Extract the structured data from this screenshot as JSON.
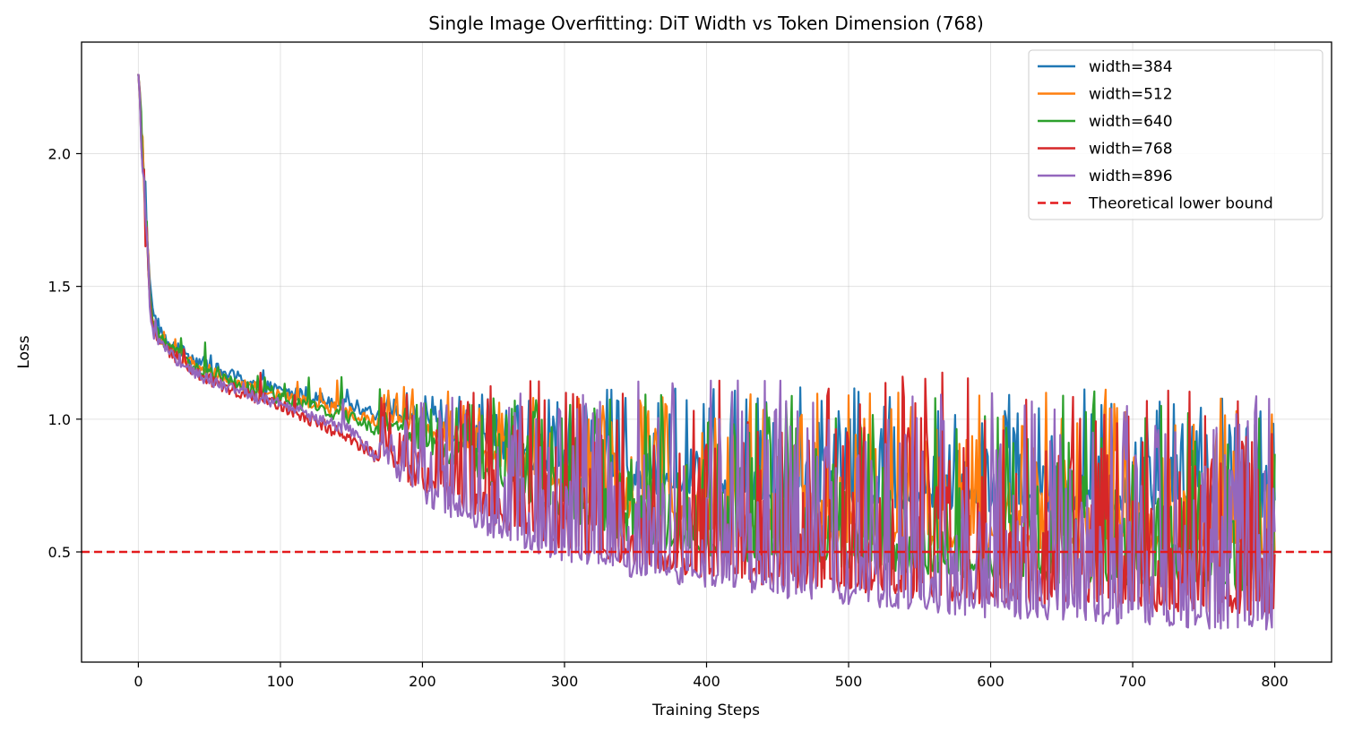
{
  "chart_data": {
    "type": "line",
    "title": "Single Image Overfitting: DiT Width vs Token Dimension (768)",
    "xlabel": "Training Steps",
    "ylabel": "Loss",
    "xlim": [
      -40,
      840
    ],
    "ylim": [
      0.085,
      2.42
    ],
    "xticks": [
      0,
      100,
      200,
      300,
      400,
      500,
      600,
      700,
      800
    ],
    "yticks": [
      0.5,
      1.0,
      1.5,
      2.0
    ],
    "xtick_labels": [
      "0",
      "100",
      "200",
      "300",
      "400",
      "500",
      "600",
      "700",
      "800"
    ],
    "ytick_labels": [
      "0.5",
      "1.0",
      "1.5",
      "2.0"
    ],
    "grid": true,
    "legend_position": "top-right",
    "reference_line": {
      "name": "Theoretical lower bound",
      "y": 0.5,
      "color": "#e31a1c",
      "style": "dashed"
    },
    "series": [
      {
        "name": "width=384",
        "color": "#1f77b4",
        "x": [
          0,
          5,
          10,
          20,
          40,
          60,
          100,
          150,
          200,
          250,
          300,
          350,
          400,
          450,
          500,
          550,
          600,
          650,
          700,
          750,
          800
        ],
        "base": [
          2.3,
          1.75,
          1.4,
          1.28,
          1.22,
          1.17,
          1.1,
          1.05,
          0.95,
          0.85,
          0.78,
          0.72,
          0.7,
          0.68,
          0.67,
          0.66,
          0.65,
          0.65,
          0.64,
          0.64,
          0.63
        ],
        "peak": [
          2.3,
          2.0,
          1.55,
          1.3,
          1.25,
          1.22,
          1.15,
          1.1,
          1.1,
          1.1,
          1.1,
          1.12,
          1.12,
          1.12,
          1.12,
          1.15,
          1.15,
          1.15,
          1.12,
          1.1,
          1.05
        ]
      },
      {
        "name": "width=512",
        "color": "#ff7f0e",
        "x": [
          0,
          5,
          10,
          20,
          40,
          60,
          100,
          150,
          200,
          250,
          300,
          350,
          400,
          450,
          500,
          550,
          600,
          650,
          700,
          750,
          800
        ],
        "base": [
          2.3,
          1.7,
          1.35,
          1.27,
          1.2,
          1.15,
          1.08,
          1.02,
          0.92,
          0.8,
          0.7,
          0.62,
          0.57,
          0.54,
          0.52,
          0.51,
          0.5,
          0.5,
          0.5,
          0.49,
          0.49
        ],
        "peak": [
          2.3,
          1.95,
          1.45,
          1.3,
          1.24,
          1.2,
          1.17,
          1.15,
          1.12,
          1.1,
          1.1,
          1.1,
          1.1,
          1.1,
          1.1,
          1.1,
          1.1,
          1.1,
          1.12,
          1.12,
          1.1
        ]
      },
      {
        "name": "width=640",
        "color": "#2ca02c",
        "x": [
          0,
          5,
          10,
          20,
          40,
          60,
          100,
          150,
          200,
          250,
          300,
          350,
          400,
          450,
          500,
          550,
          600,
          650,
          700,
          750,
          800
        ],
        "base": [
          2.3,
          1.7,
          1.35,
          1.27,
          1.19,
          1.14,
          1.07,
          1.0,
          0.88,
          0.74,
          0.62,
          0.53,
          0.48,
          0.45,
          0.43,
          0.41,
          0.4,
          0.38,
          0.37,
          0.36,
          0.35
        ],
        "peak": [
          2.3,
          2.15,
          1.72,
          1.3,
          1.39,
          1.2,
          1.15,
          1.18,
          1.08,
          1.08,
          1.08,
          1.1,
          1.1,
          1.1,
          1.1,
          1.12,
          1.12,
          1.12,
          1.1,
          1.1,
          1.08
        ]
      },
      {
        "name": "width=768",
        "color": "#d62728",
        "x": [
          0,
          5,
          10,
          20,
          40,
          60,
          100,
          150,
          200,
          250,
          300,
          350,
          400,
          450,
          500,
          550,
          600,
          650,
          700,
          750,
          800
        ],
        "base": [
          2.3,
          1.65,
          1.33,
          1.26,
          1.17,
          1.12,
          1.05,
          0.92,
          0.72,
          0.6,
          0.5,
          0.44,
          0.4,
          0.37,
          0.34,
          0.32,
          0.3,
          0.29,
          0.28,
          0.27,
          0.26
        ],
        "peak": [
          2.3,
          2.05,
          1.45,
          1.28,
          1.25,
          1.54,
          1.1,
          1.24,
          1.1,
          1.16,
          1.15,
          1.15,
          1.15,
          1.15,
          1.15,
          1.19,
          1.15,
          1.12,
          1.12,
          1.1,
          1.05
        ]
      },
      {
        "name": "width=896",
        "color": "#9467bd",
        "x": [
          0,
          5,
          10,
          20,
          40,
          60,
          100,
          150,
          200,
          250,
          300,
          350,
          400,
          450,
          500,
          550,
          600,
          650,
          700,
          750,
          800
        ],
        "base": [
          2.3,
          1.6,
          1.32,
          1.25,
          1.17,
          1.12,
          1.05,
          0.95,
          0.68,
          0.55,
          0.46,
          0.4,
          0.36,
          0.33,
          0.3,
          0.27,
          0.25,
          0.24,
          0.22,
          0.21,
          0.2
        ],
        "peak": [
          2.3,
          1.9,
          1.4,
          1.27,
          1.22,
          1.18,
          1.12,
          1.1,
          1.1,
          1.15,
          1.15,
          1.15,
          1.15,
          1.15,
          1.1,
          1.1,
          1.1,
          1.05,
          1.05,
          1.05,
          1.1
        ]
      }
    ]
  }
}
